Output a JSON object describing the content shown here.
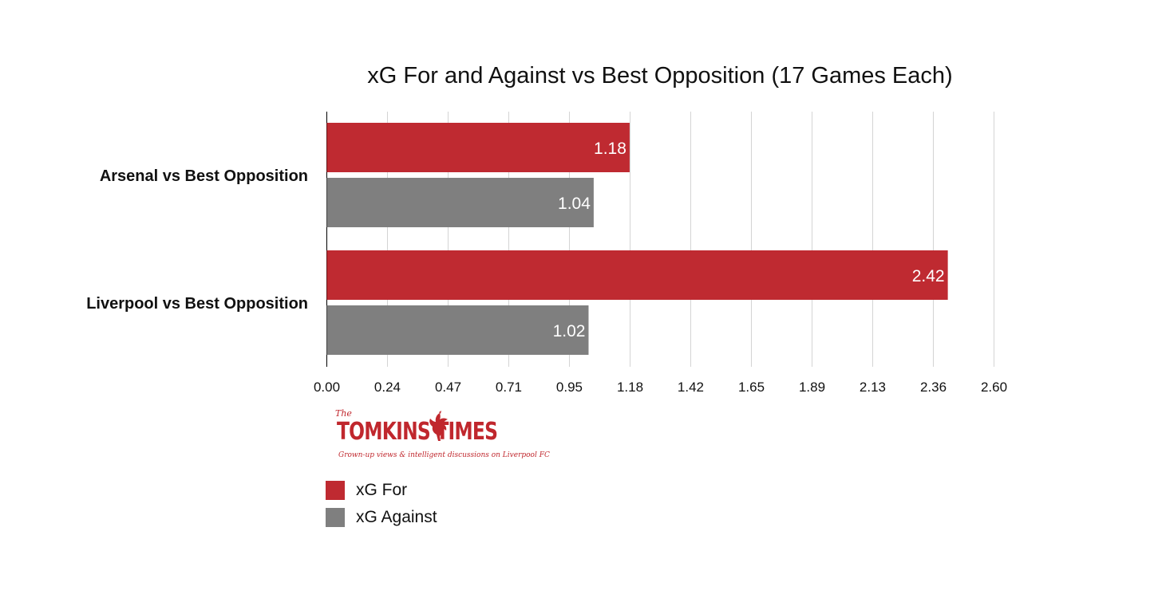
{
  "chart_data": {
    "type": "bar",
    "orientation": "horizontal",
    "title": "xG For and Against vs Best Opposition (17 Games Each)",
    "categories": [
      "Arsenal vs Best Opposition",
      "Liverpool vs Best Opposition"
    ],
    "series": [
      {
        "name": "xG For",
        "color": "#bf2a31",
        "values": [
          1.18,
          2.42
        ],
        "labels": [
          "1.18",
          "2.42"
        ]
      },
      {
        "name": "xG Against",
        "color": "#7f7f7f",
        "values": [
          1.04,
          1.02
        ],
        "labels": [
          "1.04",
          "1.02"
        ]
      }
    ],
    "xlim": [
      0,
      2.6
    ],
    "ticks": [
      0,
      0.2363,
      0.4727,
      0.709,
      0.9454,
      1.1818,
      1.4181,
      1.6545,
      1.8909,
      2.1272,
      2.3636,
      2.6
    ],
    "tick_labels": [
      "0.00",
      "0.24",
      "0.47",
      "0.71",
      "0.95",
      "1.18",
      "1.42",
      "1.65",
      "1.89",
      "2.13",
      "2.36",
      "2.60"
    ],
    "grid": "vertical",
    "legend_position": "bottom-left"
  },
  "branding": {
    "the": "The",
    "name": "TOMKINS TIMES",
    "tagline": "Grown-up views & intelligent discussions on Liverpool FC"
  }
}
